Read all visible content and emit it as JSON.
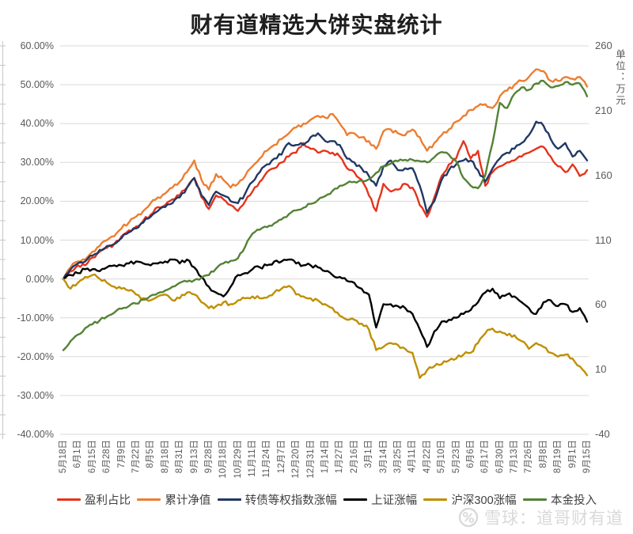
{
  "title": "财有道精选大饼实盘统计",
  "right_axis_unit": "单位：万元",
  "watermark": {
    "text": "雪球：道哥财有道",
    "logo": "xueqiu-snowball",
    "color": "#d9d9d9"
  },
  "colors": {
    "background": "#ffffff",
    "gridline": "#d9d9d9",
    "axis_text": "#595959",
    "legend_text": "#3f3f3f",
    "title_text": "#1f1f1f"
  },
  "chart_data": {
    "type": "line",
    "title": "财有道精选大饼实盘统计",
    "grid": true,
    "legend_position": "bottom",
    "x_sampling": "values sampled twice per category interval (at each tick and one midpoint); first value aligns with first category",
    "categories": [
      "5月18日",
      "6月1日",
      "6月15日",
      "6月28日",
      "7月9日",
      "7月22日",
      "8月5日",
      "8月18日",
      "8月31日",
      "9月13日",
      "9月28日",
      "10月18日",
      "10月29日",
      "11月11日",
      "11月24日",
      "12月7日",
      "12月20日",
      "12月31日",
      "1月14日",
      "1月27日",
      "2月16日",
      "3月1日",
      "3月14日",
      "3月25日",
      "4月11日",
      "4月22日",
      "5月10日",
      "5月23日",
      "6月6日",
      "6月17日",
      "6月30日",
      "7月13日",
      "7月26日",
      "8月8日",
      "8月19日",
      "9月1日",
      "9月15日"
    ],
    "left_axis": {
      "format": "percent",
      "min": -40,
      "max": 60,
      "step": 10,
      "ticks": [
        "60.00%",
        "50.00%",
        "40.00%",
        "30.00%",
        "20.00%",
        "10.00%",
        "0.00%",
        "-10.00%",
        "-20.00%",
        "-30.00%",
        "-40.00%"
      ]
    },
    "right_axis": {
      "unit": "单位：万元",
      "min": -40,
      "max": 260,
      "step": 50,
      "ticks": [
        "260",
        "210",
        "160",
        "110",
        "60",
        "10",
        "-40"
      ]
    },
    "series": [
      {
        "name": "盈利占比",
        "color": "#e6331c",
        "axis": "left",
        "values": [
          0,
          2,
          3.5,
          3.5,
          5.5,
          7,
          8,
          9,
          11,
          12.5,
          13.5,
          15,
          16.5,
          18.5,
          19,
          20.5,
          21.5,
          23.5,
          26,
          21,
          18,
          21.5,
          20.5,
          19,
          17.5,
          20,
          22.5,
          25,
          27.5,
          28.5,
          30,
          31.5,
          32.5,
          35,
          33.5,
          32.5,
          33,
          32.5,
          31.5,
          28.5,
          27.5,
          25.5,
          21.5,
          17.5,
          24.5,
          22.5,
          23,
          24.5,
          23.5,
          19,
          16,
          21,
          26.5,
          29.5,
          31,
          35.5,
          31,
          33,
          24,
          27.5,
          29,
          30,
          30.5,
          31.5,
          32.5,
          33.5,
          34,
          31.5,
          29,
          27.5,
          29.5,
          26.5,
          28
        ]
      },
      {
        "name": "累计净值",
        "color": "#ed7d31",
        "axis": "left",
        "values": [
          0,
          3,
          4.5,
          5,
          7,
          8.5,
          10,
          11,
          13,
          14.5,
          16,
          17.5,
          19.5,
          21,
          22,
          23.5,
          25,
          27.5,
          30.5,
          25.5,
          23,
          27,
          25.5,
          23.5,
          24.5,
          26.5,
          29,
          31,
          33,
          34.5,
          36,
          37.5,
          39,
          40,
          41,
          42,
          41.5,
          42.5,
          40,
          37,
          37.5,
          36.5,
          35.5,
          33.5,
          38,
          38.5,
          37.5,
          37,
          38.5,
          36.5,
          33,
          35,
          37,
          38.5,
          40.5,
          42,
          43.5,
          44.5,
          45,
          44,
          47,
          48.5,
          50,
          51,
          52,
          54,
          53.5,
          51,
          51,
          52,
          51.5,
          52,
          49.5
        ]
      },
      {
        "name": "转债等权指数涨幅",
        "color": "#203864",
        "axis": "left",
        "values": [
          0,
          2.5,
          4,
          4.5,
          6,
          7.5,
          8.5,
          9,
          10.5,
          12,
          13,
          14.5,
          16,
          17.5,
          18.5,
          19.5,
          21,
          23.5,
          26,
          21.5,
          19,
          22.5,
          21.5,
          20,
          19.5,
          22,
          25,
          27.5,
          29.5,
          31,
          32,
          35,
          34.5,
          34.5,
          36.5,
          37.5,
          35.5,
          35.5,
          34.5,
          31,
          30,
          28.5,
          26.5,
          24,
          29,
          30.5,
          28,
          28.5,
          28.5,
          24,
          17,
          20,
          25.5,
          28,
          29.5,
          30.5,
          30.5,
          28,
          25,
          28.5,
          31,
          32.5,
          33.5,
          35,
          37,
          40.5,
          39.5,
          36,
          33.5,
          35,
          31.5,
          33,
          30.5
        ]
      },
      {
        "name": "上证涨幅",
        "color": "#000000",
        "axis": "left",
        "values": [
          0,
          1,
          1.5,
          2.5,
          2.5,
          2,
          3,
          3.5,
          3.5,
          4,
          4.5,
          4,
          3.5,
          4,
          4.5,
          5,
          4,
          5,
          3,
          0.5,
          -2,
          -3.5,
          -4.5,
          -2,
          1,
          1.5,
          2.5,
          3,
          3.5,
          4.5,
          4.5,
          5,
          4,
          3.5,
          3.5,
          3,
          2,
          1,
          0.5,
          -0.5,
          -1,
          -2.5,
          -4,
          -12.5,
          -6.5,
          -6.5,
          -7,
          -7.5,
          -9,
          -13,
          -17.5,
          -13.5,
          -11,
          -10.5,
          -10,
          -9,
          -8,
          -6,
          -3.5,
          -2.5,
          -5,
          -4,
          -4.5,
          -6,
          -7.5,
          -9,
          -6,
          -5.5,
          -7,
          -6.5,
          -8.5,
          -7.5,
          -11
        ]
      },
      {
        "name": "沪深300涨幅",
        "color": "#bf8f00",
        "axis": "left",
        "values": [
          0,
          -2.5,
          -1,
          0.5,
          1,
          0,
          -1,
          -2,
          -2.5,
          -3,
          -4,
          -5,
          -5.5,
          -4.5,
          -4,
          -5.5,
          -5,
          -3.5,
          -4,
          -6,
          -7.5,
          -7,
          -6,
          -6.5,
          -5.5,
          -5,
          -4.5,
          -5,
          -4.8,
          -3.5,
          -2.5,
          -1.8,
          -4,
          -4.5,
          -5,
          -5.5,
          -6.5,
          -7.5,
          -9.5,
          -10.5,
          -10.5,
          -11.5,
          -13,
          -18.3,
          -17.5,
          -16.5,
          -17,
          -18,
          -19,
          -25.5,
          -23.5,
          -22.5,
          -22,
          -21,
          -20.5,
          -19.5,
          -19,
          -16.5,
          -14,
          -12.8,
          -13.5,
          -14.5,
          -14.5,
          -16,
          -18,
          -16.5,
          -17.5,
          -19,
          -20,
          -19.5,
          -20.5,
          -22.5,
          -24.8
        ]
      },
      {
        "name": "本金投入",
        "color": "#548235",
        "axis": "right",
        "values": [
          25,
          32,
          37,
          42,
          45,
          48,
          51,
          54,
          57,
          59,
          61,
          64,
          67,
          69,
          71,
          74,
          77,
          78,
          79,
          81,
          83,
          88,
          92,
          94,
          96,
          105,
          115,
          118,
          120,
          123,
          126,
          130,
          133,
          135,
          138,
          141,
          144,
          148,
          152,
          154,
          155,
          156,
          157,
          162,
          167,
          169,
          171,
          172,
          172,
          171,
          170,
          174,
          178,
          176,
          171,
          158,
          152,
          150,
          160,
          185,
          216,
          212,
          223,
          228,
          226,
          231,
          233,
          228,
          229,
          232,
          230,
          231,
          221
        ]
      }
    ]
  }
}
